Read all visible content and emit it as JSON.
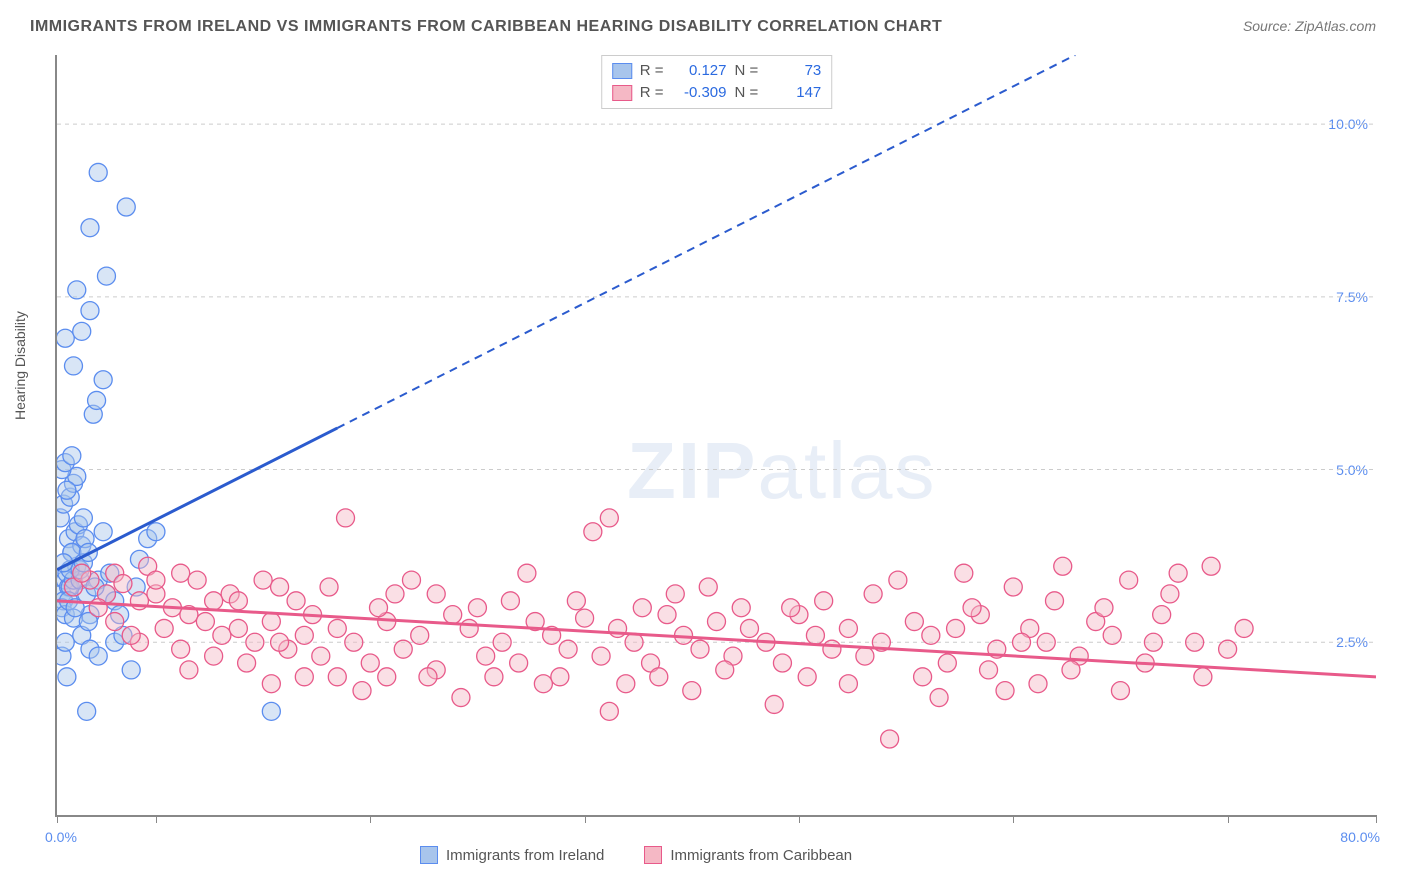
{
  "title": "IMMIGRANTS FROM IRELAND VS IMMIGRANTS FROM CARIBBEAN HEARING DISABILITY CORRELATION CHART",
  "source": "Source: ZipAtlas.com",
  "ylabel": "Hearing Disability",
  "watermark_bold": "ZIP",
  "watermark_rest": "atlas",
  "chart": {
    "type": "scatter",
    "xlim": [
      0,
      80
    ],
    "ylim": [
      0,
      11
    ],
    "xtick_positions": [
      0,
      6,
      19,
      32,
      45,
      58,
      71,
      80
    ],
    "x_label_min": "0.0%",
    "x_label_max": "80.0%",
    "ytick_positions": [
      2.5,
      5.0,
      7.5,
      10.0
    ],
    "ytick_labels": [
      "2.5%",
      "5.0%",
      "7.5%",
      "10.0%"
    ],
    "grid_color": "#cccccc",
    "background_color": "#ffffff",
    "marker_radius": 9,
    "marker_stroke_width": 1.3,
    "series": [
      {
        "name": "Immigrants from Ireland",
        "fill": "#a8c5ec",
        "fill_opacity": 0.45,
        "stroke": "#5b8def",
        "R": "0.127",
        "N": "73",
        "trend": {
          "x1": 0,
          "y1": 3.55,
          "x2": 80,
          "y2": 13.2,
          "solid_until_x": 17,
          "color": "#2b5bce",
          "width": 3
        },
        "points": [
          [
            0.3,
            3.2
          ],
          [
            0.5,
            3.4
          ],
          [
            0.7,
            3.3
          ],
          [
            0.4,
            3.1
          ],
          [
            0.6,
            3.5
          ],
          [
            0.8,
            3.3
          ],
          [
            1.0,
            3.4
          ],
          [
            0.3,
            3.0
          ],
          [
            1.2,
            3.6
          ],
          [
            1.4,
            3.4
          ],
          [
            0.5,
            2.9
          ],
          [
            0.7,
            4.0
          ],
          [
            0.9,
            3.8
          ],
          [
            1.1,
            4.1
          ],
          [
            1.3,
            4.2
          ],
          [
            1.5,
            3.9
          ],
          [
            1.7,
            4.0
          ],
          [
            0.2,
            4.3
          ],
          [
            0.4,
            4.5
          ],
          [
            0.8,
            4.6
          ],
          [
            1.0,
            4.8
          ],
          [
            1.2,
            4.9
          ],
          [
            0.6,
            4.7
          ],
          [
            1.6,
            4.3
          ],
          [
            0.3,
            5.0
          ],
          [
            0.5,
            5.1
          ],
          [
            0.9,
            5.2
          ],
          [
            1.5,
            2.6
          ],
          [
            2.0,
            2.4
          ],
          [
            2.5,
            2.3
          ],
          [
            3.0,
            3.2
          ],
          [
            3.5,
            2.5
          ],
          [
            4.0,
            2.6
          ],
          [
            4.5,
            2.1
          ],
          [
            13.0,
            1.5
          ],
          [
            5.0,
            3.7
          ],
          [
            5.5,
            4.0
          ],
          [
            6.0,
            4.1
          ],
          [
            1.8,
            1.5
          ],
          [
            2.2,
            5.8
          ],
          [
            2.4,
            6.0
          ],
          [
            2.8,
            6.3
          ],
          [
            1.0,
            6.5
          ],
          [
            0.5,
            6.9
          ],
          [
            1.5,
            7.0
          ],
          [
            2.0,
            7.3
          ],
          [
            3.0,
            7.8
          ],
          [
            1.2,
            7.6
          ],
          [
            0.8,
            3.55
          ],
          [
            1.4,
            3.55
          ],
          [
            0.3,
            2.3
          ],
          [
            0.5,
            2.5
          ],
          [
            2.0,
            2.9
          ],
          [
            3.5,
            3.1
          ],
          [
            4.8,
            3.3
          ],
          [
            0.6,
            2.0
          ],
          [
            1.8,
            3.2
          ],
          [
            2.5,
            3.4
          ],
          [
            0.9,
            3.8
          ],
          [
            1.6,
            3.65
          ],
          [
            2.5,
            9.3
          ],
          [
            4.2,
            8.8
          ],
          [
            2.0,
            8.5
          ],
          [
            1.0,
            2.85
          ],
          [
            0.4,
            3.65
          ],
          [
            2.8,
            4.1
          ],
          [
            1.9,
            3.8
          ],
          [
            3.2,
            3.5
          ],
          [
            0.7,
            3.1
          ],
          [
            1.1,
            3.0
          ],
          [
            1.9,
            2.8
          ],
          [
            2.3,
            3.3
          ],
          [
            3.8,
            2.9
          ]
        ]
      },
      {
        "name": "Immigrants from Caribbean",
        "fill": "#f5b8c5",
        "fill_opacity": 0.45,
        "stroke": "#e85a8a",
        "R": "-0.309",
        "N": "147",
        "trend": {
          "x1": 0,
          "y1": 3.1,
          "x2": 80,
          "y2": 2.0,
          "solid_until_x": 80,
          "color": "#e85a8a",
          "width": 3
        },
        "points": [
          [
            1,
            3.3
          ],
          [
            2,
            3.4
          ],
          [
            3,
            3.2
          ],
          [
            3.5,
            3.5
          ],
          [
            4,
            3.35
          ],
          [
            5,
            3.1
          ],
          [
            5.5,
            3.6
          ],
          [
            6,
            3.2
          ],
          [
            7,
            3.0
          ],
          [
            7.5,
            3.5
          ],
          [
            8,
            2.9
          ],
          [
            8.5,
            3.4
          ],
          [
            9,
            2.8
          ],
          [
            10,
            2.6
          ],
          [
            10.5,
            3.2
          ],
          [
            11,
            2.7
          ],
          [
            12,
            2.5
          ],
          [
            13,
            2.8
          ],
          [
            13.5,
            3.3
          ],
          [
            9.5,
            2.3
          ],
          [
            11.5,
            2.2
          ],
          [
            14,
            2.4
          ],
          [
            15,
            2.6
          ],
          [
            15.5,
            2.9
          ],
          [
            16,
            2.3
          ],
          [
            17,
            2.7
          ],
          [
            17.5,
            4.3
          ],
          [
            18,
            2.5
          ],
          [
            19,
            2.2
          ],
          [
            20,
            2.8
          ],
          [
            20.5,
            3.2
          ],
          [
            21,
            2.4
          ],
          [
            22,
            2.6
          ],
          [
            23,
            2.1
          ],
          [
            24,
            2.9
          ],
          [
            25,
            2.7
          ],
          [
            26,
            2.3
          ],
          [
            27,
            2.5
          ],
          [
            28,
            2.2
          ],
          [
            29,
            2.8
          ],
          [
            30,
            2.6
          ],
          [
            31,
            2.4
          ],
          [
            32,
            2.85
          ],
          [
            33,
            2.3
          ],
          [
            33.5,
            4.3
          ],
          [
            34,
            2.7
          ],
          [
            35,
            2.5
          ],
          [
            36,
            2.2
          ],
          [
            37,
            2.9
          ],
          [
            38,
            2.6
          ],
          [
            39,
            2.4
          ],
          [
            40,
            2.8
          ],
          [
            41,
            2.3
          ],
          [
            42,
            2.7
          ],
          [
            43,
            2.5
          ],
          [
            44,
            2.2
          ],
          [
            45,
            2.9
          ],
          [
            46,
            2.6
          ],
          [
            47,
            2.4
          ],
          [
            48,
            2.7
          ],
          [
            49,
            2.3
          ],
          [
            50,
            2.5
          ],
          [
            51,
            3.4
          ],
          [
            52,
            2.8
          ],
          [
            53,
            2.6
          ],
          [
            54,
            2.2
          ],
          [
            55,
            3.5
          ],
          [
            56,
            2.9
          ],
          [
            57,
            2.4
          ],
          [
            58,
            3.3
          ],
          [
            59,
            2.7
          ],
          [
            60,
            2.5
          ],
          [
            61,
            3.6
          ],
          [
            62,
            2.3
          ],
          [
            63,
            2.8
          ],
          [
            64,
            2.6
          ],
          [
            65,
            3.4
          ],
          [
            66,
            2.2
          ],
          [
            67,
            2.9
          ],
          [
            68,
            3.5
          ],
          [
            69,
            2.5
          ],
          [
            70,
            3.6
          ],
          [
            71,
            2.4
          ],
          [
            13,
            1.9
          ],
          [
            18.5,
            1.8
          ],
          [
            22.5,
            2.0
          ],
          [
            24.5,
            1.7
          ],
          [
            29.5,
            1.9
          ],
          [
            38.5,
            1.8
          ],
          [
            36.5,
            2.0
          ],
          [
            50.5,
            1.1
          ],
          [
            33.5,
            1.5
          ],
          [
            43.5,
            1.6
          ],
          [
            48,
            1.9
          ],
          [
            53.5,
            1.7
          ],
          [
            57.5,
            1.8
          ],
          [
            14.5,
            3.1
          ],
          [
            25.5,
            3.0
          ],
          [
            31.5,
            3.1
          ],
          [
            37.5,
            3.2
          ],
          [
            41.5,
            3.0
          ],
          [
            46.5,
            3.1
          ],
          [
            55.5,
            3.0
          ],
          [
            60.5,
            3.1
          ],
          [
            5,
            2.5
          ],
          [
            8,
            2.1
          ],
          [
            6.5,
            2.7
          ],
          [
            11,
            3.1
          ],
          [
            15,
            2.0
          ],
          [
            19.5,
            3.0
          ],
          [
            23,
            3.2
          ],
          [
            27.5,
            3.1
          ],
          [
            30.5,
            2.0
          ],
          [
            34.5,
            1.9
          ],
          [
            39.5,
            3.3
          ],
          [
            44.5,
            3.0
          ],
          [
            49.5,
            3.2
          ],
          [
            52.5,
            2.0
          ],
          [
            56.5,
            2.1
          ],
          [
            59.5,
            1.9
          ],
          [
            63.5,
            3.0
          ],
          [
            66.5,
            2.5
          ],
          [
            72,
            2.7
          ],
          [
            32.5,
            4.1
          ],
          [
            28.5,
            3.5
          ],
          [
            21.5,
            3.4
          ],
          [
            16.5,
            3.3
          ],
          [
            12.5,
            3.4
          ],
          [
            35.5,
            3.0
          ],
          [
            40.5,
            2.1
          ],
          [
            45.5,
            2.0
          ],
          [
            58.5,
            2.5
          ],
          [
            64.5,
            1.8
          ],
          [
            67.5,
            3.2
          ],
          [
            26.5,
            2.0
          ],
          [
            7.5,
            2.4
          ],
          [
            4.5,
            2.6
          ],
          [
            2.5,
            3.0
          ],
          [
            1.5,
            3.5
          ],
          [
            3.5,
            2.8
          ],
          [
            6,
            3.4
          ],
          [
            9.5,
            3.1
          ],
          [
            13.5,
            2.5
          ],
          [
            17,
            2.0
          ],
          [
            20,
            2.0
          ],
          [
            54.5,
            2.7
          ],
          [
            61.5,
            2.1
          ],
          [
            69.5,
            2.0
          ]
        ]
      }
    ]
  },
  "legend": {
    "series1": {
      "label": "Immigrants from Ireland",
      "fill": "#a8c5ec",
      "stroke": "#5b8def"
    },
    "series2": {
      "label": "Immigrants from Caribbean",
      "fill": "#f5b8c5",
      "stroke": "#e85a8a"
    }
  },
  "stats_labels": {
    "R": "R =",
    "N": "N ="
  }
}
